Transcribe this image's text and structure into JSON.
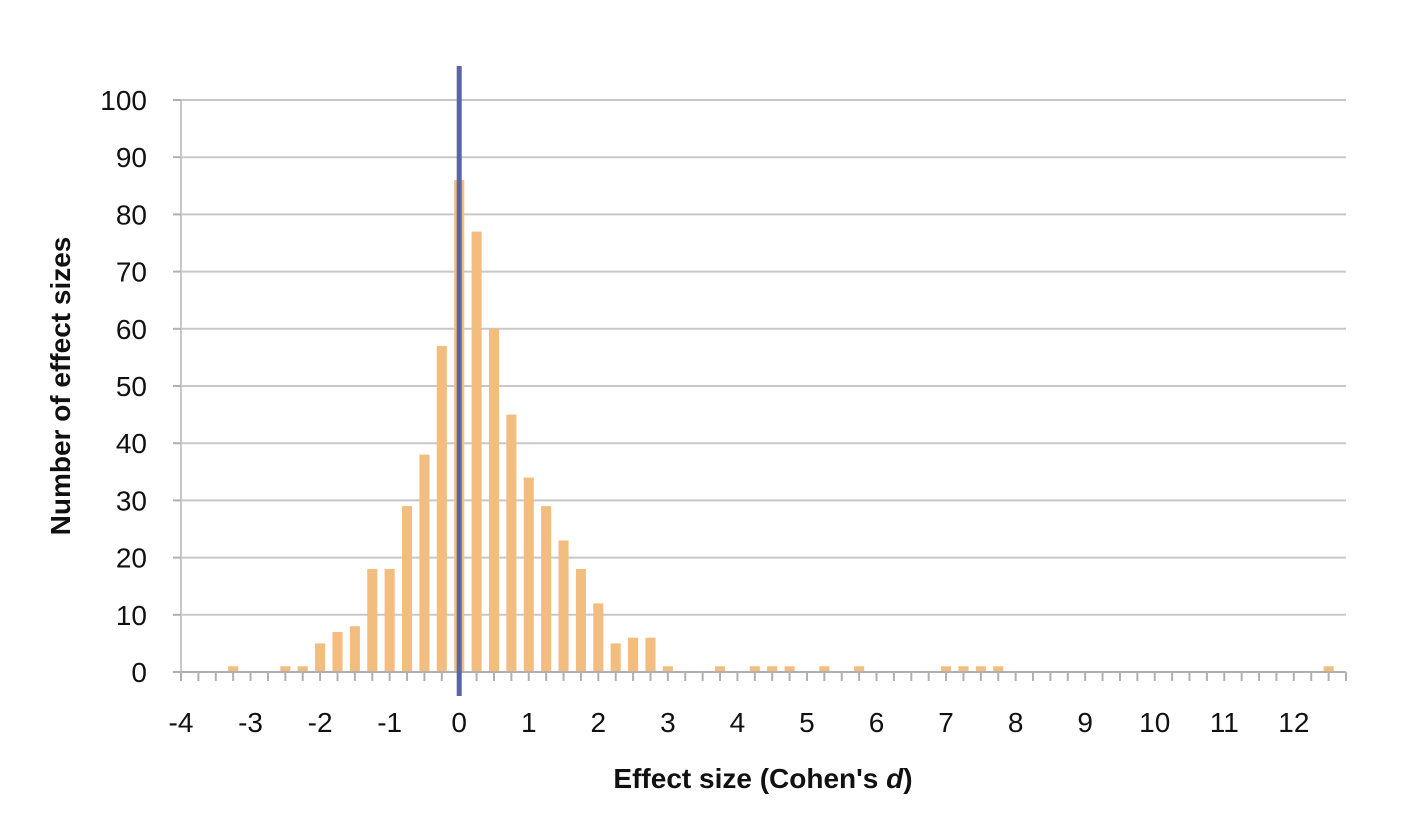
{
  "chart_data": {
    "type": "bar",
    "title": "",
    "xlabel": "Effect size (Cohen's d)",
    "xlabel_parts": [
      "Effect size (Cohen's ",
      "d",
      ")"
    ],
    "ylabel": "Number of effect sizes",
    "xlim": [
      -4,
      12.75
    ],
    "ylim": [
      0,
      100
    ],
    "x_tick_values": [
      -4,
      -3,
      -2,
      -1,
      0,
      1,
      2,
      3,
      4,
      5,
      6,
      7,
      8,
      9,
      10,
      11,
      12
    ],
    "x_tick_labels": [
      "-4",
      "-3",
      "-2",
      "-1",
      "0",
      "1",
      "2",
      "3",
      "4",
      "5",
      "6",
      "7",
      "8",
      "9",
      "10",
      "11",
      "12"
    ],
    "y_tick_values": [
      0,
      10,
      20,
      30,
      40,
      50,
      60,
      70,
      80,
      90,
      100
    ],
    "y_tick_labels": [
      "0",
      "10",
      "20",
      "30",
      "40",
      "50",
      "60",
      "70",
      "80",
      "90",
      "100"
    ],
    "bin_width": 0.25,
    "grid": true,
    "reference_line_x": 0,
    "bins": [
      {
        "x": -3.25,
        "y": 1
      },
      {
        "x": -2.5,
        "y": 1
      },
      {
        "x": -2.25,
        "y": 1
      },
      {
        "x": -2.0,
        "y": 5
      },
      {
        "x": -1.75,
        "y": 7
      },
      {
        "x": -1.5,
        "y": 8
      },
      {
        "x": -1.25,
        "y": 18
      },
      {
        "x": -1.0,
        "y": 18
      },
      {
        "x": -0.75,
        "y": 29
      },
      {
        "x": -0.5,
        "y": 38
      },
      {
        "x": -0.25,
        "y": 57
      },
      {
        "x": 0.0,
        "y": 86
      },
      {
        "x": 0.25,
        "y": 77
      },
      {
        "x": 0.5,
        "y": 60
      },
      {
        "x": 0.75,
        "y": 45
      },
      {
        "x": 1.0,
        "y": 34
      },
      {
        "x": 1.25,
        "y": 29
      },
      {
        "x": 1.5,
        "y": 23
      },
      {
        "x": 1.75,
        "y": 18
      },
      {
        "x": 2.0,
        "y": 12
      },
      {
        "x": 2.25,
        "y": 5
      },
      {
        "x": 2.5,
        "y": 6
      },
      {
        "x": 2.75,
        "y": 6
      },
      {
        "x": 3.0,
        "y": 1
      },
      {
        "x": 3.75,
        "y": 1
      },
      {
        "x": 4.25,
        "y": 1
      },
      {
        "x": 4.5,
        "y": 1
      },
      {
        "x": 4.75,
        "y": 1
      },
      {
        "x": 5.25,
        "y": 1
      },
      {
        "x": 5.75,
        "y": 1
      },
      {
        "x": 7.0,
        "y": 1
      },
      {
        "x": 7.25,
        "y": 1
      },
      {
        "x": 7.5,
        "y": 1
      },
      {
        "x": 7.75,
        "y": 1
      },
      {
        "x": 12.5,
        "y": 1
      }
    ]
  },
  "colors": {
    "bar": "#f2bd7e",
    "reference_line": "#5b63a8",
    "grid": "#c8c8c8",
    "axis": "#b0b0b0",
    "text": "#111111"
  }
}
